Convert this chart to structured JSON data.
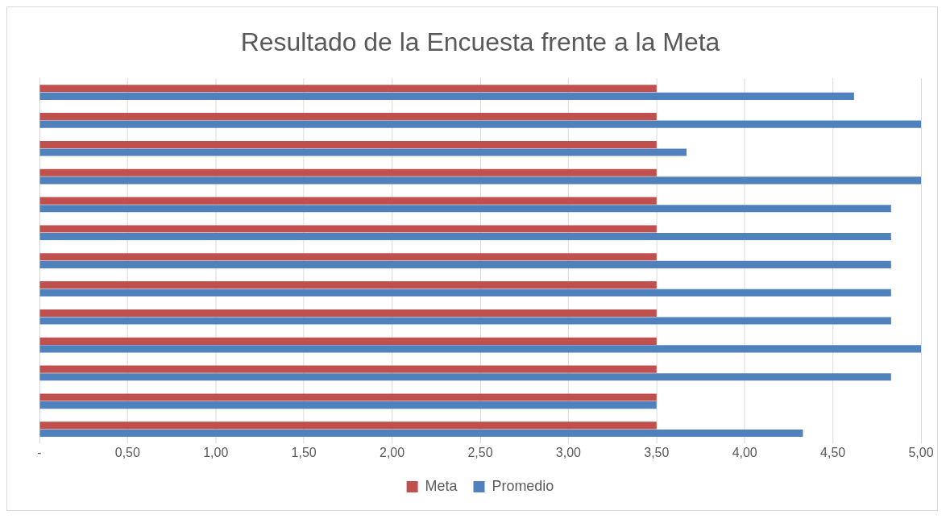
{
  "chart_data": {
    "type": "bar",
    "orientation": "horizontal",
    "title": "Resultado de la Encuesta frente a la Meta",
    "categories": [
      null,
      null,
      null,
      null,
      null,
      null,
      null,
      null,
      null,
      null,
      null,
      null,
      null
    ],
    "series": [
      {
        "name": "Meta",
        "color": "#c0504d",
        "values": [
          3.5,
          3.5,
          3.5,
          3.5,
          3.5,
          3.5,
          3.5,
          3.5,
          3.5,
          3.5,
          3.5,
          3.5,
          3.5
        ]
      },
      {
        "name": "Promedio",
        "color": "#4f81bd",
        "values": [
          4.62,
          5.0,
          3.67,
          5.0,
          4.83,
          4.83,
          4.83,
          4.83,
          4.83,
          5.0,
          4.83,
          3.5,
          4.33
        ]
      }
    ],
    "xlim": [
      0,
      5
    ],
    "xticks": [
      {
        "value": 0,
        "label": "-"
      },
      {
        "value": 0.5,
        "label": "0,50"
      },
      {
        "value": 1,
        "label": "1,00"
      },
      {
        "value": 1.5,
        "label": "1,50"
      },
      {
        "value": 2,
        "label": "2,00"
      },
      {
        "value": 2.5,
        "label": "2,50"
      },
      {
        "value": 3,
        "label": "3,00"
      },
      {
        "value": 3.5,
        "label": "3,50"
      },
      {
        "value": 4,
        "label": "4,00"
      },
      {
        "value": 4.5,
        "label": "4,50"
      },
      {
        "value": 5,
        "label": "5,00"
      }
    ],
    "grid": "x",
    "legend": "bottom",
    "tick_labels": "x"
  }
}
